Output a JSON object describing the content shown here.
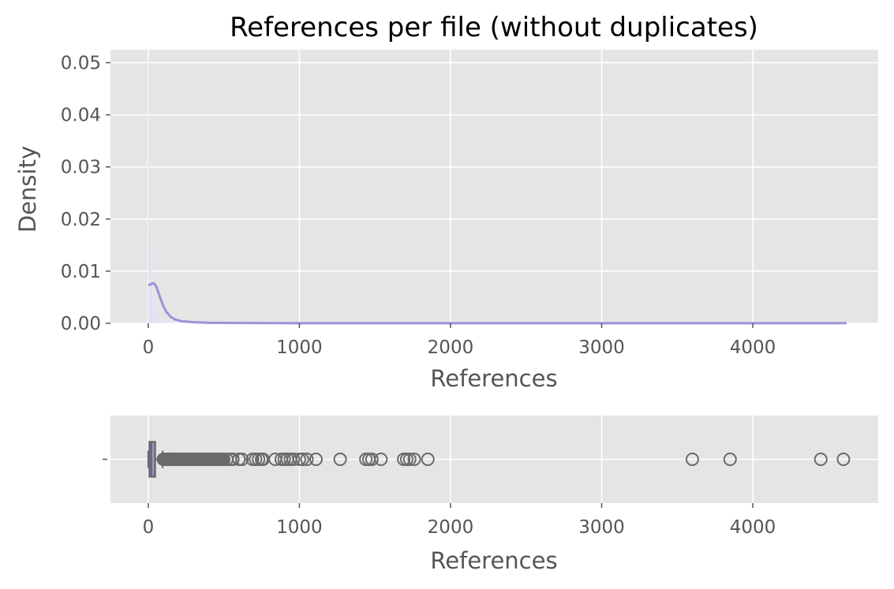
{
  "chart_data": [
    {
      "type": "histogram",
      "title": "References per file (without duplicates)",
      "xlabel": "References",
      "ylabel": "Density",
      "xlim": [
        -250,
        4830
      ],
      "ylim": [
        0,
        0.0525
      ],
      "xticks": [
        0,
        1000,
        2000,
        3000,
        4000
      ],
      "yticks": [
        0.0,
        0.01,
        0.02,
        0.03,
        0.04,
        0.05
      ],
      "ytick_labels": [
        "0.00",
        "0.01",
        "0.02",
        "0.03",
        "0.04",
        "0.05"
      ],
      "grid": true,
      "bar_color": "#c8c2e8",
      "kde_color": "#9b93d8",
      "histogram_bins": [
        {
          "x": 0,
          "density": 0.0508
        },
        {
          "x": 4,
          "density": 0.04
        },
        {
          "x": 8,
          "density": 0.0187
        },
        {
          "x": 12,
          "density": 0.0148
        },
        {
          "x": 16,
          "density": 0.0104
        },
        {
          "x": 20,
          "density": 0.0092
        },
        {
          "x": 24,
          "density": 0.0083
        },
        {
          "x": 28,
          "density": 0.0073
        },
        {
          "x": 32,
          "density": 0.0065
        },
        {
          "x": 36,
          "density": 0.0057
        },
        {
          "x": 40,
          "density": 0.005
        },
        {
          "x": 44,
          "density": 0.0043
        },
        {
          "x": 48,
          "density": 0.0036
        },
        {
          "x": 52,
          "density": 0.003
        },
        {
          "x": 56,
          "density": 0.0027
        },
        {
          "x": 60,
          "density": 0.0024
        },
        {
          "x": 64,
          "density": 0.002
        },
        {
          "x": 68,
          "density": 0.0017
        },
        {
          "x": 72,
          "density": 0.0015
        },
        {
          "x": 76,
          "density": 0.0013
        },
        {
          "x": 80,
          "density": 0.0011
        },
        {
          "x": 84,
          "density": 0.001
        },
        {
          "x": 88,
          "density": 0.0009
        },
        {
          "x": 92,
          "density": 0.0008
        },
        {
          "x": 96,
          "density": 0.0007
        },
        {
          "x": 100,
          "density": 0.0006
        },
        {
          "x": 104,
          "density": 0.0005
        },
        {
          "x": 108,
          "density": 0.0005
        },
        {
          "x": 112,
          "density": 0.0004
        },
        {
          "x": 116,
          "density": 0.0009
        },
        {
          "x": 120,
          "density": 0.0004
        },
        {
          "x": 124,
          "density": 0.0003
        },
        {
          "x": 128,
          "density": 0.0003
        },
        {
          "x": 132,
          "density": 0.0002
        }
      ],
      "kde": {
        "x": [
          0,
          10,
          20,
          30,
          40,
          50,
          60,
          70,
          80,
          100,
          120,
          150,
          180,
          220,
          300,
          400,
          600,
          1000,
          2000,
          3000,
          4000,
          4620
        ],
        "y": [
          0.0073,
          0.0074,
          0.0075,
          0.0077,
          0.0076,
          0.0072,
          0.0065,
          0.0057,
          0.0048,
          0.0033,
          0.0022,
          0.0012,
          0.0007,
          0.0004,
          0.0002,
          0.0001,
          5e-05,
          2e-05,
          1e-05,
          1e-05,
          1e-05,
          1e-05
        ]
      }
    },
    {
      "type": "boxplot",
      "xlabel": "References",
      "xlim": [
        -250,
        4830
      ],
      "xticks": [
        0,
        1000,
        2000,
        3000,
        4000
      ],
      "ytick_labels": [
        ""
      ],
      "grid": true,
      "box_color": "#9b93d8",
      "line_color": "#6a6a6a",
      "stats": {
        "whislo": 0,
        "q1": 8,
        "median": 20,
        "q3": 45,
        "whishi": 95
      },
      "fliers": [
        100,
        105,
        110,
        115,
        120,
        125,
        130,
        135,
        140,
        145,
        150,
        155,
        160,
        165,
        170,
        175,
        180,
        185,
        190,
        195,
        200,
        210,
        220,
        230,
        240,
        250,
        260,
        270,
        280,
        290,
        300,
        310,
        320,
        330,
        340,
        350,
        360,
        370,
        380,
        390,
        400,
        410,
        420,
        430,
        440,
        450,
        460,
        470,
        480,
        490,
        500,
        520,
        545,
        560,
        600,
        620,
        690,
        710,
        730,
        750,
        760,
        840,
        880,
        900,
        920,
        940,
        960,
        1000,
        1020,
        1050,
        1110,
        1270,
        1440,
        1460,
        1480,
        1540,
        1690,
        1710,
        1730,
        1760,
        1850,
        3600,
        3850,
        4450,
        4600
      ]
    }
  ]
}
